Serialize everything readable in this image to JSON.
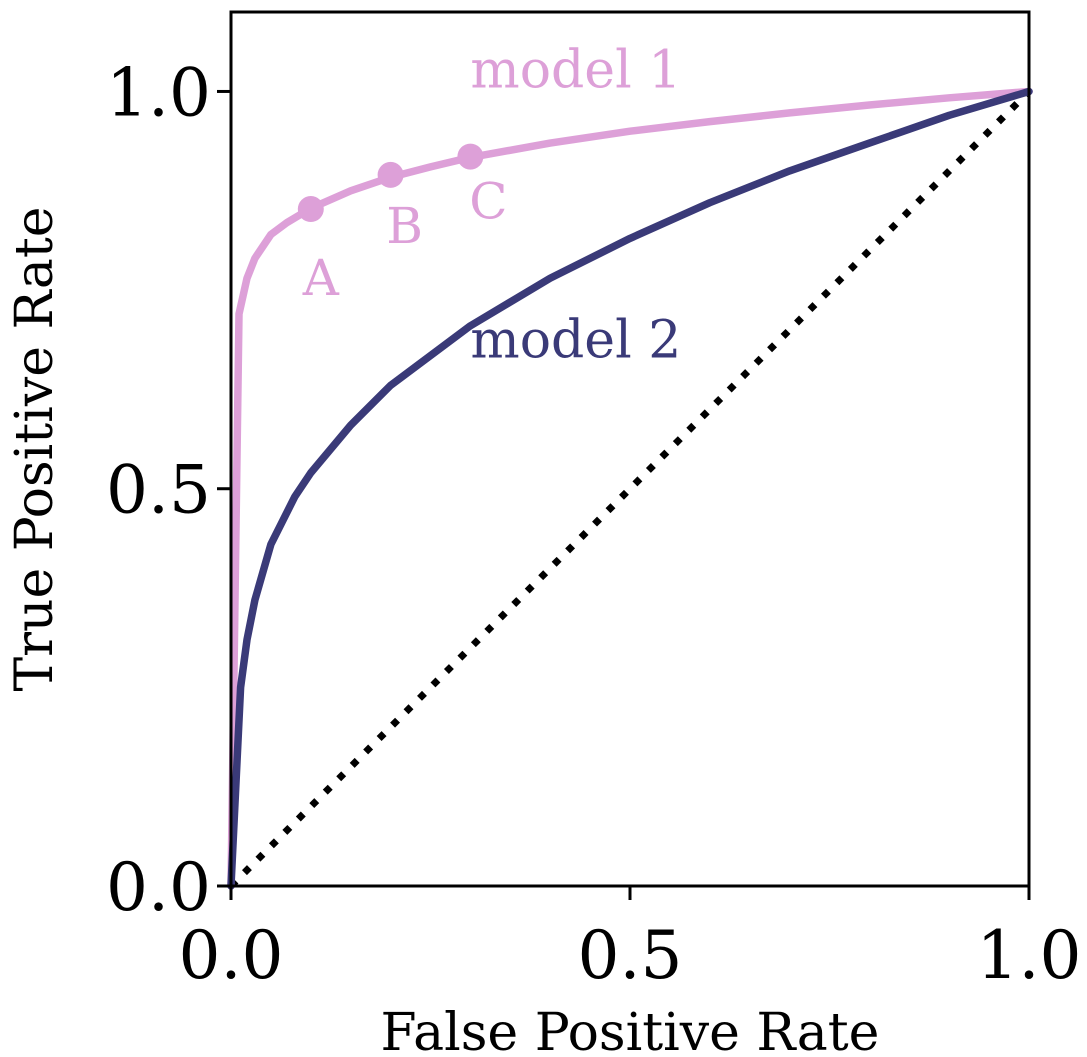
{
  "chart_data": {
    "type": "line",
    "title": "",
    "xlabel": "False Positive Rate",
    "ylabel": "True Positive Rate",
    "xlim": [
      0,
      1
    ],
    "ylim": [
      0,
      1.1
    ],
    "xticks": [
      0.0,
      0.5,
      1.0
    ],
    "yticks": [
      0.0,
      0.5,
      1.0
    ],
    "xtick_labels": [
      "0.0",
      "0.5",
      "1.0"
    ],
    "ytick_labels": [
      "0.0",
      "0.5",
      "1.0"
    ],
    "grid": false,
    "legend": "none",
    "series": [
      {
        "name": "model 1",
        "color": "#dda0d8",
        "x": [
          0.0,
          0.01,
          0.02,
          0.03,
          0.05,
          0.07,
          0.1,
          0.15,
          0.2,
          0.25,
          0.3,
          0.4,
          0.5,
          0.6,
          0.7,
          0.8,
          0.9,
          1.0
        ],
        "y": [
          0.0,
          0.72,
          0.765,
          0.79,
          0.82,
          0.835,
          0.853,
          0.875,
          0.892,
          0.905,
          0.917,
          0.935,
          0.95,
          0.962,
          0.973,
          0.983,
          0.992,
          1.0
        ]
      },
      {
        "name": "model 2",
        "color": "#3a3a78",
        "x": [
          0.0,
          0.012,
          0.02,
          0.03,
          0.05,
          0.08,
          0.1,
          0.15,
          0.2,
          0.3,
          0.4,
          0.5,
          0.6,
          0.7,
          0.8,
          0.9,
          1.0
        ],
        "y": [
          0.0,
          0.25,
          0.31,
          0.36,
          0.43,
          0.49,
          0.52,
          0.58,
          0.63,
          0.705,
          0.765,
          0.815,
          0.86,
          0.9,
          0.935,
          0.97,
          1.0
        ]
      },
      {
        "name": "",
        "color": "#000000",
        "style": "dotted",
        "x": [
          0.0,
          1.0
        ],
        "y": [
          0.0,
          1.0
        ]
      }
    ],
    "points": [
      {
        "label": "A",
        "x": 0.1,
        "y": 0.852
      },
      {
        "label": "B",
        "x": 0.2,
        "y": 0.895
      },
      {
        "label": "C",
        "x": 0.3,
        "y": 0.918
      }
    ],
    "annotations": [
      {
        "text": "model 1",
        "x": 0.3,
        "y": 1.005,
        "color": "#dda0d8"
      },
      {
        "text": "model 2",
        "x": 0.3,
        "y": 0.665,
        "color": "#3a3a78"
      }
    ]
  }
}
